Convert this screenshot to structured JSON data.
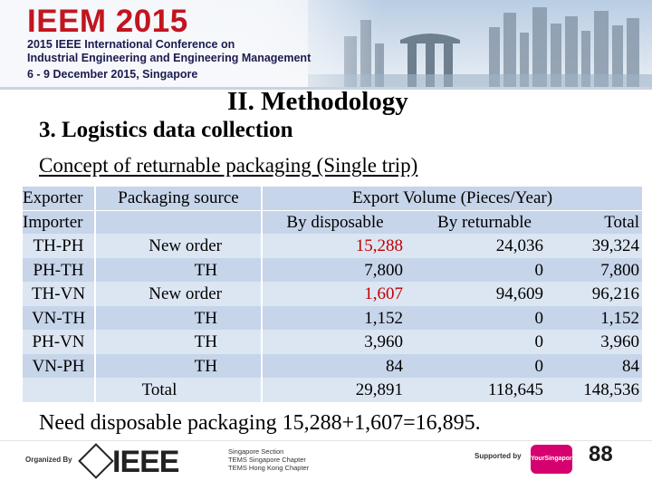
{
  "header": {
    "logo": "IEEM 2015",
    "line1": "2015 IEEE International Conference on",
    "line2": "Industrial Engineering and Engineering Management",
    "line3": "6 - 9 December 2015, Singapore"
  },
  "slide": {
    "section_title": "II. Methodology",
    "subtitle": "3. Logistics data collection",
    "concept": "Concept of returnable packaging (Single trip)",
    "note": "Need disposable packaging 15,288+1,607=16,895."
  },
  "table": {
    "header_row1": {
      "col1": "Exporter",
      "col2": "Packaging source",
      "col3": "Export Volume (Pieces/Year)"
    },
    "header_row2": {
      "col1": "Importer",
      "col3": "By disposable",
      "col4": "By returnable",
      "col5": "Total"
    },
    "rows": [
      {
        "route": "TH-PH",
        "source": "New order",
        "disposable": "15,288",
        "returnable": "24,036",
        "total": "39,324"
      },
      {
        "route": "PH-TH",
        "source": "TH",
        "disposable": "7,800",
        "returnable": "0",
        "total": "7,800"
      },
      {
        "route": "TH-VN",
        "source": "New order",
        "disposable": "1,607",
        "returnable": "94,609",
        "total": "96,216"
      },
      {
        "route": "VN-TH",
        "source": "TH",
        "disposable": "1,152",
        "returnable": "0",
        "total": "1,152"
      },
      {
        "route": "PH-VN",
        "source": "TH",
        "disposable": "3,960",
        "returnable": "0",
        "total": "3,960"
      },
      {
        "route": "VN-PH",
        "source": "TH",
        "disposable": "84",
        "returnable": "0",
        "total": "84"
      }
    ],
    "total_row": {
      "label": "Total",
      "disposable": "29,891",
      "returnable": "118,645",
      "total": "148,536"
    },
    "highlight_color": "#c00000"
  },
  "footer": {
    "organized_by": "Organized By",
    "ieee": "IEEE",
    "chapters": [
      "Singapore Section",
      "TEMS Singapore Chapter",
      "TEMS Hong Kong Chapter"
    ],
    "supported_by": "Supported by",
    "your_singapore": "YourSingapore",
    "e88": "88"
  },
  "colors": {
    "logo_red": "#c2151f",
    "table_fill": "#c7d5ea",
    "table_stripe": "#dce6f3"
  }
}
